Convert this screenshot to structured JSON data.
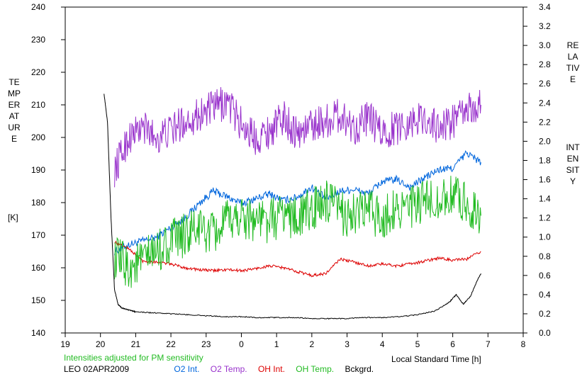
{
  "chart_data": {
    "type": "line",
    "x_label": "Local Standard Time [h]",
    "left_axis": {
      "label_letters": "TEMPERATURE",
      "unit": "[K]",
      "min": 140,
      "max": 240,
      "step": 10
    },
    "right_axis": {
      "label_line1": "RELATIVE",
      "label_line2": "INTENSITY",
      "min": 0.0,
      "max": 3.4,
      "step": 0.2
    },
    "x_ticks": [
      "19",
      "20",
      "21",
      "22",
      "23",
      "0",
      "1",
      "2",
      "3",
      "4",
      "5",
      "6",
      "7",
      "8"
    ],
    "x_range": [
      19,
      32
    ],
    "note": "Intensities adjusted for PM sensitivity",
    "station_label": "LEO 02APR2009",
    "series": [
      {
        "name": "O2 Int.",
        "color": "#0066dd",
        "axis": "right",
        "x": [
          20.4,
          20.8,
          21.2,
          21.6,
          22.0,
          22.4,
          22.8,
          23.2,
          23.6,
          24.0,
          24.4,
          24.8,
          25.2,
          25.6,
          26.0,
          26.4,
          26.8,
          27.2,
          27.6,
          28.0,
          28.4,
          28.8,
          29.2,
          29.6,
          30.0,
          30.4,
          30.8
        ],
        "y": [
          0.85,
          0.92,
          0.96,
          1.0,
          1.1,
          1.2,
          1.35,
          1.48,
          1.42,
          1.35,
          1.4,
          1.45,
          1.38,
          1.42,
          1.52,
          1.4,
          1.48,
          1.5,
          1.45,
          1.58,
          1.6,
          1.52,
          1.62,
          1.7,
          1.72,
          1.88,
          1.78
        ],
        "noise": 0.04
      },
      {
        "name": "O2 Temp.",
        "color": "#9933cc",
        "axis": "left",
        "x": [
          20.4,
          20.8,
          21.2,
          21.6,
          22.0,
          22.4,
          22.8,
          23.2,
          23.6,
          24.0,
          24.4,
          24.8,
          25.2,
          25.6,
          26.0,
          26.4,
          26.8,
          27.2,
          27.6,
          28.0,
          28.4,
          28.8,
          29.2,
          29.6,
          30.0,
          30.4,
          30.8
        ],
        "y": [
          190,
          200,
          203,
          200,
          202,
          205,
          207,
          209,
          211,
          204,
          200,
          202,
          206,
          201,
          204,
          205,
          207,
          203,
          206,
          201,
          203,
          205,
          206,
          203,
          205,
          208,
          210
        ],
        "noise": 5.5
      },
      {
        "name": "OH Int.",
        "color": "#dd0000",
        "axis": "right",
        "x": [
          20.4,
          20.8,
          21.2,
          21.6,
          22.0,
          22.4,
          22.8,
          23.2,
          23.6,
          24.0,
          24.4,
          24.8,
          25.2,
          25.6,
          26.0,
          26.4,
          26.8,
          27.2,
          27.6,
          28.0,
          28.4,
          28.8,
          29.2,
          29.6,
          30.0,
          30.4,
          30.8
        ],
        "y": [
          0.95,
          0.88,
          0.75,
          0.74,
          0.72,
          0.68,
          0.66,
          0.65,
          0.66,
          0.65,
          0.67,
          0.7,
          0.68,
          0.64,
          0.6,
          0.62,
          0.77,
          0.74,
          0.7,
          0.72,
          0.7,
          0.72,
          0.75,
          0.78,
          0.76,
          0.77,
          0.85
        ],
        "noise": 0.015
      },
      {
        "name": "OH Temp.",
        "color": "#22bb22",
        "axis": "left",
        "x": [
          20.4,
          20.8,
          21.2,
          21.6,
          22.0,
          22.4,
          22.8,
          23.2,
          23.6,
          24.0,
          24.4,
          24.8,
          25.2,
          25.6,
          26.0,
          26.4,
          26.8,
          27.2,
          27.6,
          28.0,
          28.4,
          28.8,
          29.2,
          29.6,
          30.0,
          30.4,
          30.8
        ],
        "y": [
          163,
          160,
          162,
          165,
          168,
          170,
          172,
          170,
          174,
          176,
          175,
          174,
          177,
          175,
          178,
          180,
          177,
          176,
          178,
          175,
          179,
          178,
          180,
          181,
          182,
          180,
          176
        ],
        "noise": 7
      },
      {
        "name": "Bckgrd.",
        "color": "#000000",
        "axis": "right",
        "x": [
          20.1,
          20.2,
          20.3,
          20.4,
          20.5,
          20.6,
          20.8,
          21.0,
          21.5,
          22.0,
          22.5,
          23.0,
          23.5,
          24.0,
          24.5,
          25.0,
          25.5,
          26.0,
          26.5,
          27.0,
          27.5,
          28.0,
          28.5,
          29.0,
          29.5,
          29.9,
          30.1,
          30.3,
          30.5,
          30.7,
          30.8
        ],
        "y": [
          2.5,
          2.2,
          1.2,
          0.45,
          0.3,
          0.26,
          0.24,
          0.22,
          0.21,
          0.2,
          0.19,
          0.18,
          0.17,
          0.17,
          0.16,
          0.16,
          0.16,
          0.15,
          0.15,
          0.15,
          0.16,
          0.16,
          0.17,
          0.19,
          0.23,
          0.32,
          0.4,
          0.3,
          0.38,
          0.55,
          0.62
        ],
        "noise": 0.005
      }
    ]
  }
}
